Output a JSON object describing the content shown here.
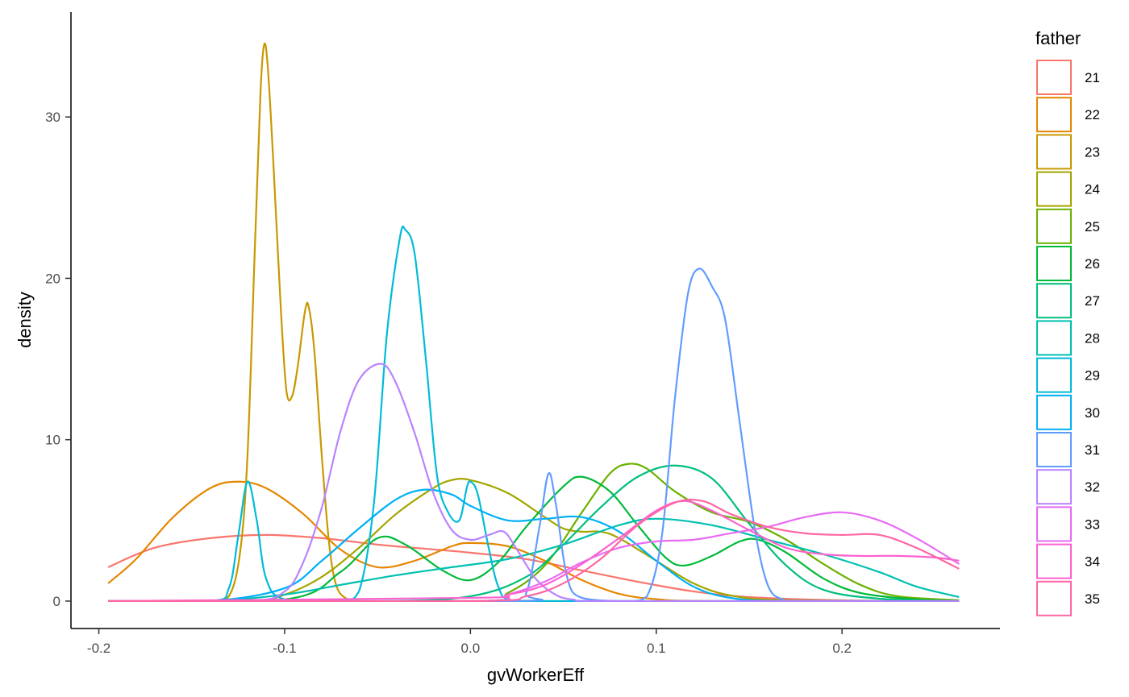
{
  "chart_data": {
    "type": "line",
    "xlabel": "gvWorkerEff",
    "ylabel": "density",
    "xlim": [
      -0.215,
      0.285
    ],
    "ylim": [
      -1.7,
      36.5
    ],
    "x_ticks": [
      -0.2,
      -0.1,
      0.0,
      0.1,
      0.2
    ],
    "x_tick_labels": [
      "-0.2",
      "-0.1",
      "0.0",
      "0.1",
      "0.2"
    ],
    "y_ticks": [
      0,
      10,
      20,
      30
    ],
    "y_tick_labels": [
      "0",
      "10",
      "20",
      "30"
    ],
    "grid": false,
    "legend_title": "father",
    "legend_position": "right",
    "series": [
      {
        "name": "21",
        "color": "#F8766D",
        "points": [
          [
            -0.195,
            2.1
          ],
          [
            -0.17,
            3.3
          ],
          [
            -0.14,
            3.9
          ],
          [
            -0.11,
            4.1
          ],
          [
            -0.08,
            3.9
          ],
          [
            -0.05,
            3.5
          ],
          [
            -0.02,
            3.2
          ],
          [
            0.0,
            3.0
          ],
          [
            0.03,
            2.6
          ],
          [
            0.06,
            1.9
          ],
          [
            0.09,
            1.2
          ],
          [
            0.12,
            0.6
          ],
          [
            0.15,
            0.25
          ],
          [
            0.2,
            0.05
          ],
          [
            0.263,
            0.0
          ]
        ]
      },
      {
        "name": "22",
        "color": "#E58700",
        "points": [
          [
            -0.195,
            1.1
          ],
          [
            -0.18,
            2.6
          ],
          [
            -0.16,
            5.2
          ],
          [
            -0.14,
            7.0
          ],
          [
            -0.125,
            7.4
          ],
          [
            -0.11,
            7.0
          ],
          [
            -0.09,
            5.4
          ],
          [
            -0.07,
            3.2
          ],
          [
            -0.05,
            2.1
          ],
          [
            -0.03,
            2.5
          ],
          [
            -0.01,
            3.4
          ],
          [
            0.0,
            3.6
          ],
          [
            0.02,
            3.4
          ],
          [
            0.04,
            2.5
          ],
          [
            0.06,
            1.3
          ],
          [
            0.08,
            0.45
          ],
          [
            0.1,
            0.12
          ],
          [
            0.13,
            0.0
          ],
          [
            0.263,
            0.0
          ]
        ]
      },
      {
        "name": "23",
        "color": "#C99800",
        "points": [
          [
            -0.195,
            0.0
          ],
          [
            -0.14,
            0.0
          ],
          [
            -0.13,
            0.3
          ],
          [
            -0.124,
            3.0
          ],
          [
            -0.12,
            9.0
          ],
          [
            -0.116,
            22.0
          ],
          [
            -0.113,
            31.5
          ],
          [
            -0.111,
            34.5
          ],
          [
            -0.109,
            33.0
          ],
          [
            -0.106,
            27.0
          ],
          [
            -0.102,
            18.0
          ],
          [
            -0.099,
            13.0
          ],
          [
            -0.096,
            12.7
          ],
          [
            -0.093,
            14.5
          ],
          [
            -0.089,
            18.0
          ],
          [
            -0.087,
            18.2
          ],
          [
            -0.084,
            15.5
          ],
          [
            -0.08,
            9.0
          ],
          [
            -0.076,
            3.5
          ],
          [
            -0.072,
            0.9
          ],
          [
            -0.066,
            0.1
          ],
          [
            -0.06,
            0.0
          ],
          [
            0.263,
            0.0
          ]
        ]
      },
      {
        "name": "24",
        "color": "#A3A500",
        "points": [
          [
            -0.195,
            0.0
          ],
          [
            -0.12,
            0.0
          ],
          [
            -0.1,
            0.4
          ],
          [
            -0.08,
            1.5
          ],
          [
            -0.06,
            3.3
          ],
          [
            -0.04,
            5.4
          ],
          [
            -0.02,
            7.0
          ],
          [
            -0.01,
            7.5
          ],
          [
            0.0,
            7.5
          ],
          [
            0.02,
            6.7
          ],
          [
            0.04,
            5.2
          ],
          [
            0.05,
            4.5
          ],
          [
            0.06,
            4.3
          ],
          [
            0.07,
            4.3
          ],
          [
            0.08,
            3.9
          ],
          [
            0.1,
            2.5
          ],
          [
            0.12,
            1.1
          ],
          [
            0.14,
            0.35
          ],
          [
            0.17,
            0.05
          ],
          [
            0.263,
            0.0
          ]
        ]
      },
      {
        "name": "25",
        "color": "#6BB100",
        "points": [
          [
            -0.195,
            0.0
          ],
          [
            0.0,
            0.0
          ],
          [
            0.02,
            0.5
          ],
          [
            0.04,
            2.2
          ],
          [
            0.06,
            5.5
          ],
          [
            0.075,
            7.9
          ],
          [
            0.085,
            8.5
          ],
          [
            0.095,
            8.2
          ],
          [
            0.11,
            6.8
          ],
          [
            0.13,
            5.5
          ],
          [
            0.15,
            4.9
          ],
          [
            0.17,
            3.8
          ],
          [
            0.19,
            2.3
          ],
          [
            0.21,
            1.0
          ],
          [
            0.23,
            0.3
          ],
          [
            0.263,
            0.05
          ]
        ]
      },
      {
        "name": "26",
        "color": "#00BA38",
        "points": [
          [
            -0.195,
            0.0
          ],
          [
            -0.1,
            0.1
          ],
          [
            -0.07,
            1.8
          ],
          [
            -0.05,
            3.9
          ],
          [
            -0.035,
            3.5
          ],
          [
            -0.015,
            1.9
          ],
          [
            0.0,
            1.3
          ],
          [
            0.015,
            2.4
          ],
          [
            0.03,
            4.6
          ],
          [
            0.05,
            7.1
          ],
          [
            0.06,
            7.7
          ],
          [
            0.075,
            6.8
          ],
          [
            0.09,
            4.7
          ],
          [
            0.105,
            2.7
          ],
          [
            0.115,
            2.2
          ],
          [
            0.13,
            2.8
          ],
          [
            0.145,
            3.7
          ],
          [
            0.155,
            3.8
          ],
          [
            0.17,
            3.0
          ],
          [
            0.19,
            1.4
          ],
          [
            0.21,
            0.5
          ],
          [
            0.24,
            0.1
          ],
          [
            0.263,
            0.0
          ]
        ]
      },
      {
        "name": "27",
        "color": "#00BF7D",
        "points": [
          [
            -0.195,
            0.0
          ],
          [
            -0.05,
            0.0
          ],
          [
            0.0,
            0.3
          ],
          [
            0.03,
            1.5
          ],
          [
            0.05,
            3.5
          ],
          [
            0.07,
            5.8
          ],
          [
            0.09,
            7.7
          ],
          [
            0.11,
            8.4
          ],
          [
            0.13,
            7.6
          ],
          [
            0.15,
            4.8
          ],
          [
            0.17,
            2.2
          ],
          [
            0.19,
            0.7
          ],
          [
            0.22,
            0.15
          ],
          [
            0.263,
            0.0
          ]
        ]
      },
      {
        "name": "28",
        "color": "#00C0AF",
        "points": [
          [
            -0.195,
            0.0
          ],
          [
            -0.14,
            0.0
          ],
          [
            -0.1,
            0.4
          ],
          [
            -0.07,
            1.0
          ],
          [
            -0.04,
            1.6
          ],
          [
            -0.01,
            2.1
          ],
          [
            0.02,
            2.6
          ],
          [
            0.05,
            3.5
          ],
          [
            0.08,
            4.7
          ],
          [
            0.1,
            5.1
          ],
          [
            0.13,
            4.7
          ],
          [
            0.16,
            3.8
          ],
          [
            0.19,
            2.9
          ],
          [
            0.22,
            1.8
          ],
          [
            0.24,
            0.9
          ],
          [
            0.263,
            0.25
          ]
        ]
      },
      {
        "name": "29",
        "color": "#00BCD8",
        "points": [
          [
            -0.195,
            0.0
          ],
          [
            -0.14,
            0.0
          ],
          [
            -0.13,
            0.8
          ],
          [
            -0.125,
            4.0
          ],
          [
            -0.12,
            7.4
          ],
          [
            -0.115,
            5.0
          ],
          [
            -0.11,
            1.4
          ],
          [
            -0.1,
            0.1
          ],
          [
            -0.07,
            0.0
          ],
          [
            -0.06,
            0.6
          ],
          [
            -0.052,
            6.0
          ],
          [
            -0.045,
            16.5
          ],
          [
            -0.038,
            22.5
          ],
          [
            -0.035,
            23.0
          ],
          [
            -0.03,
            21.5
          ],
          [
            -0.024,
            15.0
          ],
          [
            -0.018,
            7.8
          ],
          [
            -0.012,
            5.5
          ],
          [
            -0.006,
            5.0
          ],
          [
            -0.002,
            7.0
          ],
          [
            0.0,
            7.4
          ],
          [
            0.004,
            6.6
          ],
          [
            0.01,
            3.2
          ],
          [
            0.015,
            0.9
          ],
          [
            0.022,
            0.05
          ],
          [
            0.05,
            0.0
          ],
          [
            0.263,
            0.0
          ]
        ]
      },
      {
        "name": "30",
        "color": "#00B0F6",
        "points": [
          [
            -0.195,
            0.0
          ],
          [
            -0.14,
            0.0
          ],
          [
            -0.1,
            0.8
          ],
          [
            -0.08,
            2.5
          ],
          [
            -0.06,
            4.5
          ],
          [
            -0.04,
            6.3
          ],
          [
            -0.025,
            6.9
          ],
          [
            -0.01,
            6.6
          ],
          [
            0.0,
            5.9
          ],
          [
            0.02,
            5.0
          ],
          [
            0.04,
            5.1
          ],
          [
            0.06,
            5.2
          ],
          [
            0.08,
            4.3
          ],
          [
            0.1,
            2.5
          ],
          [
            0.12,
            0.9
          ],
          [
            0.14,
            0.2
          ],
          [
            0.17,
            0.0
          ],
          [
            0.263,
            0.0
          ]
        ]
      },
      {
        "name": "31",
        "color": "#619CFF",
        "points": [
          [
            -0.195,
            0.0
          ],
          [
            0.02,
            0.0
          ],
          [
            0.03,
            0.5
          ],
          [
            0.037,
            4.5
          ],
          [
            0.042,
            7.9
          ],
          [
            0.046,
            6.0
          ],
          [
            0.052,
            1.5
          ],
          [
            0.06,
            0.2
          ],
          [
            0.085,
            0.0
          ],
          [
            0.095,
            0.3
          ],
          [
            0.103,
            4.0
          ],
          [
            0.11,
            12.5
          ],
          [
            0.117,
            19.0
          ],
          [
            0.123,
            20.6
          ],
          [
            0.13,
            19.5
          ],
          [
            0.137,
            17.5
          ],
          [
            0.145,
            11.0
          ],
          [
            0.153,
            4.5
          ],
          [
            0.16,
            1.0
          ],
          [
            0.168,
            0.1
          ],
          [
            0.18,
            0.0
          ],
          [
            0.263,
            0.0
          ]
        ]
      },
      {
        "name": "32",
        "color": "#B983FF",
        "points": [
          [
            -0.195,
            0.0
          ],
          [
            -0.12,
            0.0
          ],
          [
            -0.1,
            0.6
          ],
          [
            -0.09,
            2.4
          ],
          [
            -0.08,
            5.8
          ],
          [
            -0.07,
            10.5
          ],
          [
            -0.06,
            13.7
          ],
          [
            -0.048,
            14.7
          ],
          [
            -0.04,
            13.5
          ],
          [
            -0.03,
            10.4
          ],
          [
            -0.02,
            6.7
          ],
          [
            -0.01,
            4.4
          ],
          [
            0.0,
            3.8
          ],
          [
            0.01,
            4.1
          ],
          [
            0.018,
            4.3
          ],
          [
            0.025,
            3.2
          ],
          [
            0.035,
            1.4
          ],
          [
            0.045,
            0.45
          ],
          [
            0.055,
            0.1
          ],
          [
            0.08,
            0.0
          ],
          [
            0.263,
            0.0
          ]
        ]
      },
      {
        "name": "33",
        "color": "#E76BF3",
        "points": [
          [
            -0.195,
            0.0
          ],
          [
            0.0,
            0.0
          ],
          [
            0.02,
            0.4
          ],
          [
            0.04,
            1.2
          ],
          [
            0.06,
            2.4
          ],
          [
            0.08,
            3.3
          ],
          [
            0.1,
            3.7
          ],
          [
            0.12,
            3.8
          ],
          [
            0.14,
            4.2
          ],
          [
            0.16,
            4.6
          ],
          [
            0.18,
            5.2
          ],
          [
            0.2,
            5.5
          ],
          [
            0.22,
            5.0
          ],
          [
            0.24,
            3.9
          ],
          [
            0.263,
            2.3
          ]
        ]
      },
      {
        "name": "34",
        "color": "#FD61D1",
        "points": [
          [
            -0.195,
            0.0
          ],
          [
            0.0,
            0.2
          ],
          [
            0.02,
            0.4
          ],
          [
            0.04,
            1.0
          ],
          [
            0.06,
            2.3
          ],
          [
            0.08,
            3.9
          ],
          [
            0.1,
            5.6
          ],
          [
            0.115,
            6.2
          ],
          [
            0.13,
            5.6
          ],
          [
            0.15,
            4.4
          ],
          [
            0.17,
            3.3
          ],
          [
            0.19,
            2.9
          ],
          [
            0.21,
            2.8
          ],
          [
            0.23,
            2.8
          ],
          [
            0.25,
            2.7
          ],
          [
            0.263,
            2.5
          ]
        ]
      },
      {
        "name": "35",
        "color": "#FF67A4",
        "points": [
          [
            -0.195,
            0.0
          ],
          [
            0.0,
            0.0
          ],
          [
            0.03,
            0.3
          ],
          [
            0.05,
            1.1
          ],
          [
            0.07,
            2.6
          ],
          [
            0.09,
            4.7
          ],
          [
            0.11,
            6.1
          ],
          [
            0.125,
            6.2
          ],
          [
            0.14,
            5.4
          ],
          [
            0.16,
            4.6
          ],
          [
            0.18,
            4.2
          ],
          [
            0.2,
            4.1
          ],
          [
            0.22,
            4.1
          ],
          [
            0.24,
            3.3
          ],
          [
            0.263,
            2.0
          ]
        ]
      }
    ]
  }
}
